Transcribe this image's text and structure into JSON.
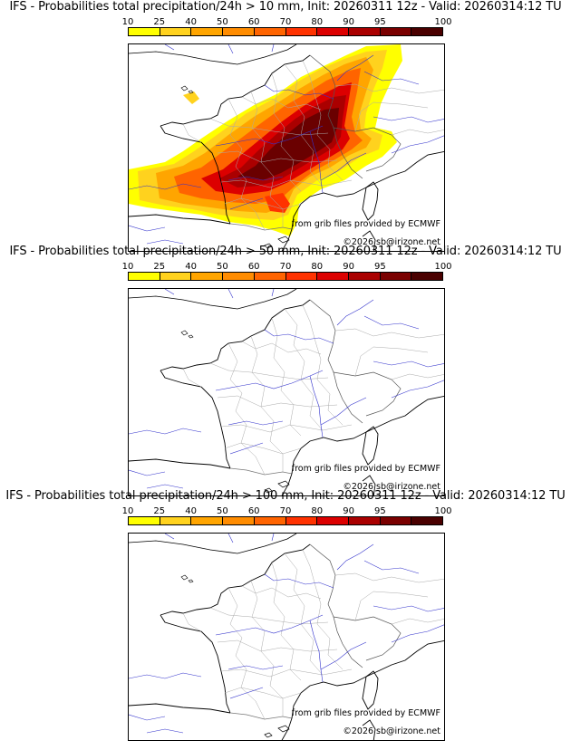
{
  "colorbar": {
    "labels": [
      "10",
      "25",
      "40",
      "50",
      "60",
      "70",
      "80",
      "90",
      "95",
      "100"
    ],
    "colors": [
      "#ffff00",
      "#ffd21e",
      "#ffa500",
      "#ff8c00",
      "#ff6400",
      "#ff3200",
      "#dc0000",
      "#aa0000",
      "#7a0000",
      "#4a0000"
    ]
  },
  "panels": [
    {
      "title": "IFS - Probabilities total precipitation/24h > 10 mm, Init: 20260311 12z - Valid: 20260314:12 TU",
      "credit_source": "from grib files provided by ECMWF",
      "credit_copyright": "©2026 sb@irizone.net"
    },
    {
      "title": "IFS - Probabilities total precipitation/24h > 50 mm, Init: 20260311 12z - Valid: 20260314:12 TU",
      "credit_source": "from grib files provided by ECMWF",
      "credit_copyright": "©2026 sb@irizone.net"
    },
    {
      "title": "IFS - Probabilities total precipitation/24h > 100 mm, Init: 20260311 12z - Valid: 20260314:12 TU",
      "credit_source": "from grib files provided by ECMWF",
      "credit_copyright": "©2026 sb@irizone.net"
    }
  ],
  "map_colors": {
    "coast": "#000000",
    "rivers": "#3333cc",
    "borders": "#aaaaaa"
  }
}
